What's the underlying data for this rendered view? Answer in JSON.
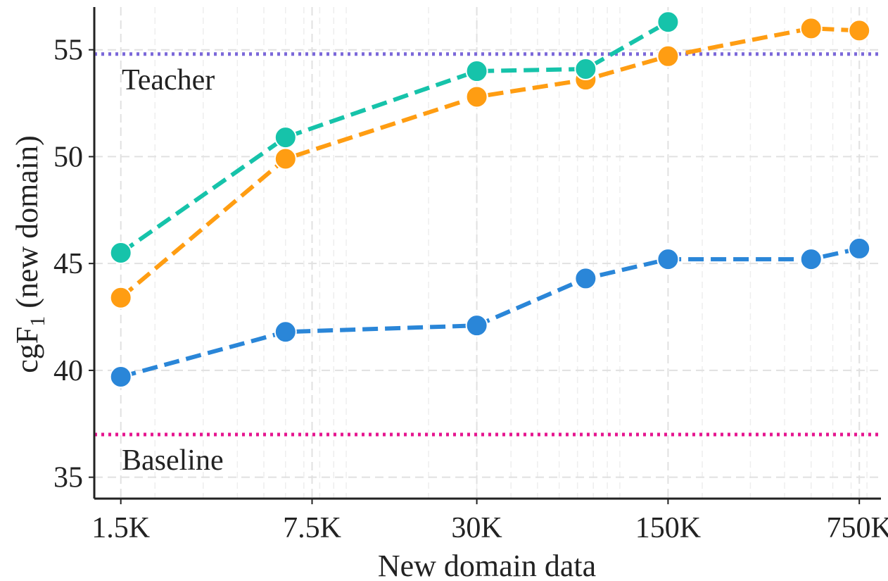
{
  "chart_data": {
    "type": "line",
    "xscale": "log",
    "xlabel": "New domain data",
    "ylabel": "cgF",
    "ylabel_subscript": "1",
    "ylabel_suffix": " (new domain)",
    "xlim": [
      1200,
      900000
    ],
    "ylim": [
      34,
      57
    ],
    "xticks": [
      {
        "value": 1500,
        "label": "1.5K"
      },
      {
        "value": 7500,
        "label": "7.5K"
      },
      {
        "value": 30000,
        "label": "30K"
      },
      {
        "value": 150000,
        "label": "150K"
      },
      {
        "value": 750000,
        "label": "750K"
      }
    ],
    "yticks": [
      {
        "value": 35,
        "label": "35"
      },
      {
        "value": 40,
        "label": "40"
      },
      {
        "value": 45,
        "label": "45"
      },
      {
        "value": 50,
        "label": "50"
      },
      {
        "value": 55,
        "label": "55"
      }
    ],
    "grid": true,
    "reference_lines": [
      {
        "label": "Teacher",
        "y": 54.8,
        "color": "#7b68d9"
      },
      {
        "label": "Baseline",
        "y": 37.0,
        "color": "#e5168f"
      }
    ],
    "series": [
      {
        "color": "#2a86d8",
        "x": [
          1500,
          6000,
          30000,
          75000,
          150000,
          500000,
          750000
        ],
        "y": [
          39.7,
          41.8,
          42.1,
          44.3,
          45.2,
          45.2,
          45.7
        ]
      },
      {
        "color": "#ff9d12",
        "x": [
          1500,
          6000,
          30000,
          75000,
          150000,
          500000,
          750000
        ],
        "y": [
          43.4,
          49.9,
          52.8,
          53.6,
          54.7,
          56.0,
          55.9
        ]
      },
      {
        "color": "#16c3aa",
        "x": [
          1500,
          6000,
          30000,
          75000,
          150000
        ],
        "y": [
          45.5,
          50.9,
          54.0,
          54.1,
          56.3
        ]
      }
    ]
  }
}
